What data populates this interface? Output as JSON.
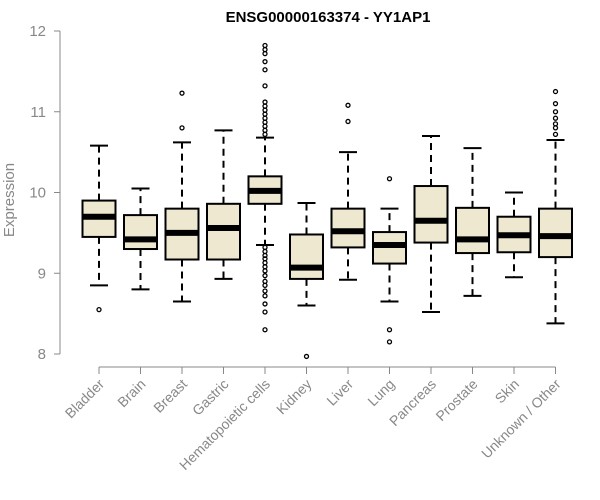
{
  "chart_data": {
    "type": "box",
    "title": "ENSG00000163374 - YY1AP1",
    "xlabel": "",
    "ylabel": "Expression",
    "ylim": [
      8,
      12
    ],
    "yticks": [
      8,
      9,
      10,
      11,
      12
    ],
    "box_color": "#EEE8D0",
    "categories": [
      "Bladder",
      "Brain",
      "Breast",
      "Gastric",
      "Hematopoietic cells",
      "Kidney",
      "Liver",
      "Lung",
      "Pancreas",
      "Prostate",
      "Skin",
      "Unknown / Other"
    ],
    "series": [
      {
        "name": "Bladder",
        "whisker_low": 8.85,
        "q1": 9.45,
        "median": 9.7,
        "q3": 9.9,
        "whisker_high": 10.58,
        "outliers": [
          8.55
        ]
      },
      {
        "name": "Brain",
        "whisker_low": 8.8,
        "q1": 9.3,
        "median": 9.42,
        "q3": 9.72,
        "whisker_high": 10.05,
        "outliers": []
      },
      {
        "name": "Breast",
        "whisker_low": 8.65,
        "q1": 9.17,
        "median": 9.5,
        "q3": 9.8,
        "whisker_high": 10.62,
        "outliers": [
          10.8,
          11.23
        ]
      },
      {
        "name": "Gastric",
        "whisker_low": 8.93,
        "q1": 9.17,
        "median": 9.56,
        "q3": 9.86,
        "whisker_high": 10.77,
        "outliers": []
      },
      {
        "name": "Hematopoietic cells",
        "whisker_low": 9.35,
        "q1": 9.86,
        "median": 10.02,
        "q3": 10.2,
        "whisker_high": 10.68,
        "outliers": [
          8.3,
          8.52,
          8.62,
          8.72,
          8.78,
          8.85,
          8.9,
          8.97,
          9.03,
          9.08,
          9.13,
          9.18,
          9.22,
          9.27,
          9.32,
          10.72,
          10.77,
          10.82,
          10.87,
          10.92,
          10.97,
          11.02,
          11.07,
          11.12,
          11.32,
          11.52,
          11.62,
          11.72,
          11.77,
          11.82
        ]
      },
      {
        "name": "Kidney",
        "whisker_low": 8.6,
        "q1": 8.93,
        "median": 9.07,
        "q3": 9.48,
        "whisker_high": 9.87,
        "outliers": [
          7.97
        ]
      },
      {
        "name": "Liver",
        "whisker_low": 8.92,
        "q1": 9.32,
        "median": 9.52,
        "q3": 9.8,
        "whisker_high": 10.5,
        "outliers": [
          10.88,
          11.08
        ]
      },
      {
        "name": "Lung",
        "whisker_low": 8.65,
        "q1": 9.12,
        "median": 9.35,
        "q3": 9.51,
        "whisker_high": 9.8,
        "outliers": [
          8.15,
          8.3,
          10.17
        ]
      },
      {
        "name": "Pancreas",
        "whisker_low": 8.52,
        "q1": 9.38,
        "median": 9.65,
        "q3": 10.08,
        "whisker_high": 10.7,
        "outliers": []
      },
      {
        "name": "Prostate",
        "whisker_low": 8.72,
        "q1": 9.25,
        "median": 9.42,
        "q3": 9.81,
        "whisker_high": 10.55,
        "outliers": []
      },
      {
        "name": "Skin",
        "whisker_low": 8.95,
        "q1": 9.26,
        "median": 9.47,
        "q3": 9.7,
        "whisker_high": 10.0,
        "outliers": []
      },
      {
        "name": "Unknown / Other",
        "whisker_low": 8.38,
        "q1": 9.2,
        "median": 9.46,
        "q3": 9.8,
        "whisker_high": 10.65,
        "outliers": [
          10.72,
          10.8,
          10.85,
          10.92,
          11.0,
          11.1,
          11.25
        ]
      }
    ]
  }
}
